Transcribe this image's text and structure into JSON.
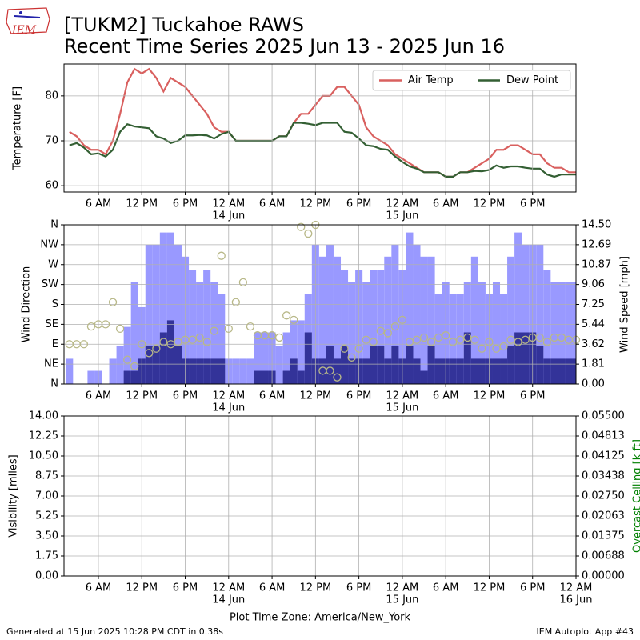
{
  "header": {
    "logo": "IEM",
    "title": [
      "[TUKM2] Tuckahoe RAWS",
      "Recent Time Series 2025 Jun 13 - 2025 Jun 16"
    ]
  },
  "footer": {
    "left": "Generated at 15 Jun 2025 10:28 PM CDT in 0.38s",
    "right": "IEM Autoplot App #43"
  },
  "chart_data": [
    {
      "type": "line",
      "ylabel": "Temperature [F]",
      "grid": true,
      "legend": "upper right",
      "xlim": [
        1.25,
        72
      ],
      "ylim": [
        58.6,
        87.1
      ],
      "yticks": [
        60,
        70,
        80
      ],
      "xticks": [
        {
          "value": 6,
          "label": "6 AM"
        },
        {
          "value": 12,
          "label": "12 PM"
        },
        {
          "value": 18,
          "label": "6 PM"
        },
        {
          "value": 24,
          "label": "12 AM",
          "date": "14 Jun"
        },
        {
          "value": 30,
          "label": "6 AM"
        },
        {
          "value": 36,
          "label": "12 PM"
        },
        {
          "value": 42,
          "label": "6 PM"
        },
        {
          "value": 48,
          "label": "12 AM",
          "date": "15 Jun"
        },
        {
          "value": 54,
          "label": "6 AM"
        },
        {
          "value": 60,
          "label": "12 PM"
        },
        {
          "value": 66,
          "label": "6 PM"
        }
      ],
      "x": [
        2,
        3,
        4,
        5,
        6,
        7,
        8,
        9,
        10,
        11,
        12,
        13,
        14,
        15,
        16,
        17,
        18,
        19,
        20,
        21,
        22,
        23,
        24,
        25,
        26,
        27,
        28,
        29,
        30,
        31,
        32,
        33,
        34,
        35,
        36,
        37,
        38,
        39,
        40,
        41,
        42,
        43,
        44,
        45,
        46,
        47,
        48,
        49,
        50,
        51,
        52,
        53,
        54,
        55,
        56,
        57,
        58,
        59,
        60,
        61,
        62,
        63,
        64,
        65,
        66,
        67,
        68,
        69,
        70,
        71,
        72
      ],
      "series": [
        {
          "name": "Air Temp",
          "color": "#d9605f",
          "values": [
            72,
            71,
            69,
            68,
            68,
            67,
            70,
            76,
            83,
            86,
            85,
            86,
            84,
            81,
            84,
            83,
            82,
            80,
            78,
            76,
            73,
            72,
            72,
            70,
            70,
            70,
            70,
            70,
            70,
            71,
            71,
            74,
            76,
            76,
            78,
            80,
            80,
            82,
            82,
            80,
            78,
            73,
            71,
            70,
            69,
            67,
            66,
            65,
            64,
            63,
            63,
            63,
            62,
            62,
            63,
            63,
            64,
            65,
            66,
            68,
            68,
            69,
            69,
            68,
            67,
            67,
            65,
            64,
            64,
            63,
            63
          ]
        },
        {
          "name": "Dew Point",
          "color": "#335f33",
          "values": [
            69,
            69.5,
            68.5,
            67,
            67.2,
            66.5,
            68,
            72,
            73.7,
            73.2,
            73,
            72.8,
            71,
            70.5,
            69.5,
            70,
            71.2,
            71.2,
            71.3,
            71.2,
            70.5,
            71.5,
            72,
            70,
            70,
            70,
            70,
            70,
            70,
            71,
            71,
            74,
            74,
            73.8,
            73.5,
            74,
            74,
            74,
            72,
            71.8,
            70.5,
            69,
            68.8,
            68.2,
            68,
            66.5,
            65.3,
            64.3,
            63.8,
            63,
            63,
            63,
            62,
            62,
            63,
            63,
            63.3,
            63.2,
            63.5,
            64.5,
            64,
            64.3,
            64.3,
            64,
            63.8,
            63.8,
            62.5,
            62,
            62.5,
            62.5,
            62.5
          ]
        }
      ]
    },
    {
      "type": "combo",
      "ylabel": "Wind Direction",
      "y2label": "Wind Speed [mph]",
      "grid": true,
      "xlim": [
        1.25,
        72
      ],
      "ylim": [
        0,
        360
      ],
      "y2lim": [
        0,
        14.5
      ],
      "yticks": [
        {
          "value": 0,
          "label": "N"
        },
        {
          "value": 45,
          "label": "NE"
        },
        {
          "value": 90,
          "label": "E"
        },
        {
          "value": 135,
          "label": "SE"
        },
        {
          "value": 180,
          "label": "S"
        },
        {
          "value": 225,
          "label": "SW"
        },
        {
          "value": 270,
          "label": "W"
        },
        {
          "value": 315,
          "label": "NW"
        },
        {
          "value": 360,
          "label": "N"
        }
      ],
      "y2ticks": [
        {
          "value": 0,
          "label": "0.00"
        },
        {
          "value": 1.8125,
          "label": "1.81"
        },
        {
          "value": 3.625,
          "label": "3.62"
        },
        {
          "value": 5.4375,
          "label": "5.44"
        },
        {
          "value": 7.25,
          "label": "7.25"
        },
        {
          "value": 9.0625,
          "label": "9.06"
        },
        {
          "value": 10.875,
          "label": "10.87"
        },
        {
          "value": 12.6875,
          "label": "12.69"
        },
        {
          "value": 14.5,
          "label": "14.50"
        }
      ],
      "xticks": [
        {
          "value": 6,
          "label": "6 AM"
        },
        {
          "value": 12,
          "label": "12 PM"
        },
        {
          "value": 18,
          "label": "6 PM"
        },
        {
          "value": 24,
          "label": "12 AM",
          "date": "14 Jun"
        },
        {
          "value": 30,
          "label": "6 AM"
        },
        {
          "value": 36,
          "label": "12 PM"
        },
        {
          "value": 42,
          "label": "6 PM"
        },
        {
          "value": 48,
          "label": "12 AM",
          "date": "15 Jun"
        },
        {
          "value": 54,
          "label": "6 AM"
        },
        {
          "value": 60,
          "label": "12 PM"
        },
        {
          "value": 66,
          "label": "6 PM"
        }
      ],
      "x": [
        2,
        3,
        4,
        5,
        6,
        7,
        8,
        9,
        10,
        11,
        12,
        13,
        14,
        15,
        16,
        17,
        18,
        19,
        20,
        21,
        22,
        23,
        24,
        25,
        26,
        27,
        28,
        29,
        30,
        31,
        32,
        33,
        34,
        35,
        36,
        37,
        38,
        39,
        40,
        41,
        42,
        43,
        44,
        45,
        46,
        47,
        48,
        49,
        50,
        51,
        52,
        53,
        54,
        55,
        56,
        57,
        58,
        59,
        60,
        61,
        62,
        63,
        64,
        65,
        66,
        67,
        68,
        69,
        70,
        71,
        72
      ],
      "series": [
        {
          "type": "bar",
          "axis": "y2",
          "color": "#9999ff",
          "values": [
            2.3,
            0,
            0,
            1.2,
            1.2,
            0,
            2.3,
            3.5,
            5.2,
            9.3,
            7,
            12.7,
            12.7,
            13.8,
            13.8,
            12.7,
            11.6,
            10.4,
            9.3,
            10.4,
            9.3,
            8.2,
            2.3,
            2.3,
            2.3,
            2.3,
            4.7,
            4.7,
            4.7,
            3.5,
            4.7,
            5.8,
            5.8,
            8.2,
            12.7,
            11.6,
            12.7,
            11.6,
            10.4,
            9.3,
            10.4,
            9.3,
            10.4,
            10.4,
            11.6,
            12.7,
            10.4,
            13.8,
            12.7,
            11.6,
            11.6,
            8.2,
            9.3,
            8.2,
            8.2,
            9.3,
            11.6,
            9.3,
            8.2,
            9.3,
            8.2,
            11.6,
            13.8,
            12.7,
            12.7,
            12.7,
            10.4,
            9.3,
            9.3,
            9.3,
            9.3
          ]
        },
        {
          "type": "bar",
          "axis": "y2",
          "color": "#333399",
          "values": [
            0,
            0,
            0,
            0,
            0,
            0,
            0,
            0,
            1.2,
            1.2,
            2.3,
            3.5,
            3.5,
            4.7,
            5.8,
            3.5,
            2.3,
            2.3,
            2.3,
            2.3,
            2.3,
            2.3,
            0,
            0,
            0,
            0,
            1.2,
            1.2,
            1.2,
            0,
            1.2,
            2.3,
            1.2,
            4.7,
            2.3,
            2.3,
            3.5,
            2.3,
            3.5,
            2.3,
            2.3,
            2.3,
            3.5,
            3.5,
            2.3,
            3.5,
            2.3,
            3.5,
            2.3,
            1.2,
            3.5,
            2.3,
            2.3,
            2.3,
            2.3,
            4.7,
            2.3,
            2.3,
            2.3,
            2.3,
            2.3,
            3.5,
            4.7,
            4.7,
            4.7,
            3.5,
            2.3,
            2.3,
            2.3,
            2.3,
            2.3
          ]
        },
        {
          "type": "scatter",
          "color": "#b8b888",
          "values": [
            90,
            90,
            90,
            130,
            135,
            135,
            185,
            125,
            55,
            40,
            90,
            70,
            80,
            95,
            90,
            95,
            100,
            100,
            105,
            95,
            120,
            290,
            125,
            185,
            230,
            130,
            110,
            110,
            110,
            105,
            155,
            145,
            355,
            340,
            360,
            30,
            30,
            15,
            80,
            60,
            80,
            100,
            95,
            120,
            115,
            130,
            145,
            95,
            100,
            105,
            95,
            105,
            110,
            95,
            100,
            105,
            100,
            80,
            95,
            80,
            85,
            100,
            95,
            100,
            105,
            105,
            95,
            105,
            105,
            100,
            100
          ]
        }
      ]
    },
    {
      "type": "line",
      "ylabel": "Visibility [miles]",
      "y2label": "Overcast Ceiling [k ft]",
      "y2label_color": "#008000",
      "xlabel": "Plot Time Zone: America/New_York",
      "grid": true,
      "xlim": [
        1.25,
        72
      ],
      "ylim": [
        0,
        14
      ],
      "y2lim": [
        0,
        0.055
      ],
      "yticks": [
        {
          "value": 0,
          "label": "0.00"
        },
        {
          "value": 1.75,
          "label": "1.75"
        },
        {
          "value": 3.5,
          "label": "3.50"
        },
        {
          "value": 5.25,
          "label": "5.25"
        },
        {
          "value": 7,
          "label": "7.00"
        },
        {
          "value": 8.75,
          "label": "8.75"
        },
        {
          "value": 10.5,
          "label": "10.50"
        },
        {
          "value": 12.25,
          "label": "12.25"
        },
        {
          "value": 14,
          "label": "14.00"
        }
      ],
      "y2ticks": [
        {
          "value": 0,
          "label": "0.00000"
        },
        {
          "value": 0.006875,
          "label": "0.00688"
        },
        {
          "value": 0.01375,
          "label": "0.01375"
        },
        {
          "value": 0.020625,
          "label": "0.02063"
        },
        {
          "value": 0.0275,
          "label": "0.02750"
        },
        {
          "value": 0.034375,
          "label": "0.03438"
        },
        {
          "value": 0.04125,
          "label": "0.04125"
        },
        {
          "value": 0.048125,
          "label": "0.04813"
        },
        {
          "value": 0.055,
          "label": "0.05500"
        }
      ],
      "xticks": [
        {
          "value": 6,
          "label": "6 AM"
        },
        {
          "value": 12,
          "label": "12 PM"
        },
        {
          "value": 18,
          "label": "6 PM"
        },
        {
          "value": 24,
          "label": "12 AM",
          "date": "14 Jun"
        },
        {
          "value": 30,
          "label": "6 AM"
        },
        {
          "value": 36,
          "label": "12 PM"
        },
        {
          "value": 42,
          "label": "6 PM"
        },
        {
          "value": 48,
          "label": "12 AM",
          "date": "15 Jun"
        },
        {
          "value": 54,
          "label": "6 AM"
        },
        {
          "value": 60,
          "label": "12 PM"
        },
        {
          "value": 66,
          "label": "6 PM"
        },
        {
          "value": 72,
          "label": "12 AM",
          "date": "16 Jun"
        }
      ]
    }
  ]
}
